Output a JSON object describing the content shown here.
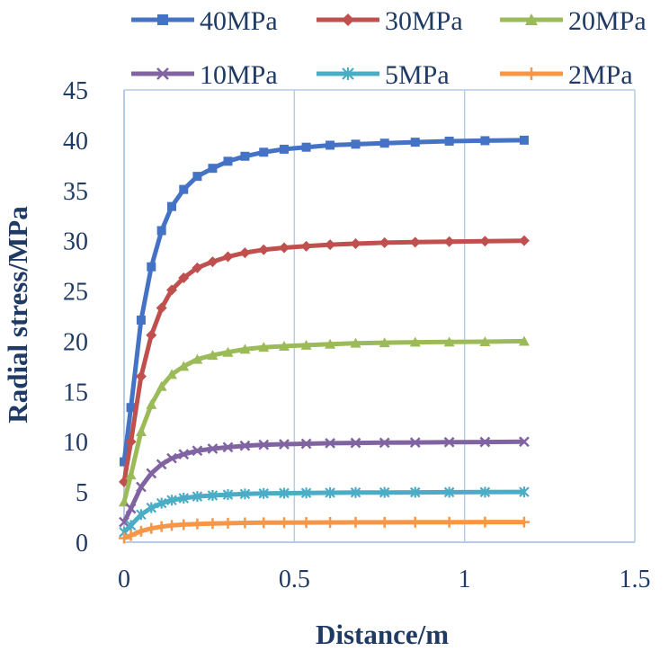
{
  "chart_data": {
    "type": "line",
    "xlabel": "Distance/m",
    "ylabel": "Radial stress/MPa",
    "xlim": [
      0,
      1.5
    ],
    "ylim": [
      0,
      45
    ],
    "xticks": [
      0,
      0.5,
      1,
      1.5
    ],
    "xtick_labels": [
      "0",
      "0.5",
      "1",
      "1.5"
    ],
    "yticks": [
      0,
      5,
      10,
      15,
      20,
      25,
      30,
      35,
      40,
      45
    ],
    "ytick_labels": [
      "0",
      "5",
      "10",
      "15",
      "20",
      "25",
      "30",
      "35",
      "40",
      "45"
    ],
    "grid": "vertical",
    "legend_position": "top",
    "x": [
      0,
      0.02,
      0.05,
      0.08,
      0.11,
      0.14,
      0.175,
      0.215,
      0.26,
      0.305,
      0.355,
      0.41,
      0.47,
      0.535,
      0.605,
      0.68,
      0.765,
      0.855,
      0.955,
      1.06,
      1.175
    ],
    "series": [
      {
        "name": "40MPa",
        "color": "#4472c4",
        "marker": "square",
        "values": [
          8.0,
          13.4,
          22.1,
          27.4,
          31.0,
          33.4,
          35.1,
          36.4,
          37.2,
          37.9,
          38.4,
          38.8,
          39.1,
          39.3,
          39.5,
          39.6,
          39.7,
          39.8,
          39.9,
          39.95,
          40.0
        ]
      },
      {
        "name": "30MPa",
        "color": "#c0504d",
        "marker": "diamond",
        "values": [
          6.0,
          10.0,
          16.5,
          20.6,
          23.3,
          25.1,
          26.3,
          27.3,
          27.9,
          28.4,
          28.8,
          29.1,
          29.3,
          29.45,
          29.6,
          29.7,
          29.8,
          29.85,
          29.9,
          29.95,
          30.0
        ]
      },
      {
        "name": "20MPa",
        "color": "#9bbb59",
        "marker": "triangle",
        "values": [
          4.0,
          6.7,
          11.0,
          13.7,
          15.5,
          16.7,
          17.5,
          18.2,
          18.6,
          18.9,
          19.2,
          19.4,
          19.5,
          19.6,
          19.7,
          19.8,
          19.85,
          19.9,
          19.92,
          19.95,
          20.0
        ]
      },
      {
        "name": "10MPa",
        "color": "#8064a2",
        "marker": "x",
        "values": [
          2.0,
          3.35,
          5.5,
          6.85,
          7.75,
          8.35,
          8.75,
          9.1,
          9.3,
          9.45,
          9.6,
          9.7,
          9.75,
          9.8,
          9.85,
          9.88,
          9.9,
          9.92,
          9.95,
          9.97,
          10.0
        ]
      },
      {
        "name": "5MPa",
        "color": "#4bacc6",
        "marker": "asterisk",
        "values": [
          1.0,
          1.68,
          2.75,
          3.43,
          3.88,
          4.18,
          4.38,
          4.55,
          4.65,
          4.73,
          4.8,
          4.85,
          4.88,
          4.9,
          4.92,
          4.94,
          4.95,
          4.96,
          4.97,
          4.98,
          5.0
        ]
      },
      {
        "name": "2MPa",
        "color": "#f79646",
        "marker": "plus",
        "values": [
          0.4,
          0.67,
          1.1,
          1.37,
          1.55,
          1.67,
          1.75,
          1.82,
          1.86,
          1.89,
          1.92,
          1.94,
          1.95,
          1.96,
          1.97,
          1.98,
          1.98,
          1.99,
          1.99,
          2.0,
          2.0
        ]
      }
    ]
  }
}
